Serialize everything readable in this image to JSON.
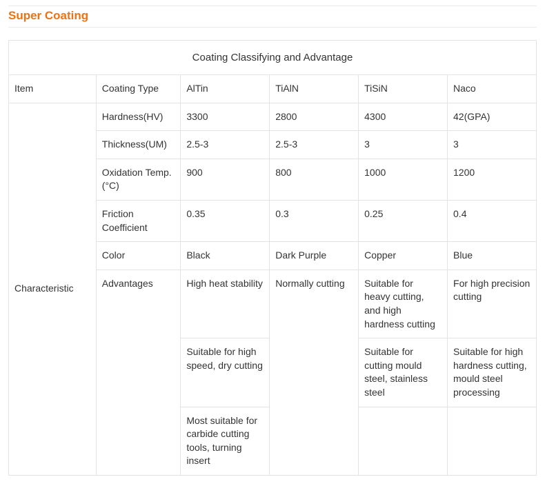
{
  "heading": "Super Coating",
  "table": {
    "caption": "Coating Classifying and Advantage",
    "header": {
      "item": "Item",
      "coating_type": "Coating Type",
      "coatings": [
        "AlTin",
        "TiAlN",
        "TiSiN",
        "Naco"
      ]
    },
    "row_label": "Characteristic",
    "rows": [
      {
        "type": "Hardness(HV)",
        "vals": [
          "3300",
          "2800",
          "4300",
          "42(GPA)"
        ]
      },
      {
        "type": "Thickness(UM)",
        "vals": [
          "2.5-3",
          "2.5-3",
          "3",
          "3"
        ]
      },
      {
        "type": "Oxidation Temp.(°C)",
        "vals": [
          "900",
          "800",
          "1000",
          "1200"
        ]
      },
      {
        "type": "Friction Coefficient",
        "vals": [
          "0.35",
          "0.3",
          "0.25",
          "0.4"
        ]
      },
      {
        "type": "Color",
        "vals": [
          "Black",
          "Dark Purple",
          "Copper",
          "Blue"
        ]
      }
    ],
    "adv_label": "Advantages",
    "adv": {
      "r1": [
        "High heat stability",
        "Normally cutting",
        "Suitable for heavy cutting, and\nhigh hardness cutting",
        "For high precision cutting"
      ],
      "r2": [
        "Suitable for high speed, dry cutting",
        "Suitable for cutting mould steel, stainless steel",
        "Suitable for high hardness cutting, mould\nsteel processing"
      ],
      "r3": [
        "Most suitable for carbide cutting\ntools, turning insert"
      ]
    }
  },
  "colors": {
    "accent": "#e87417",
    "border": "#e3e3e3",
    "text": "#333333"
  }
}
